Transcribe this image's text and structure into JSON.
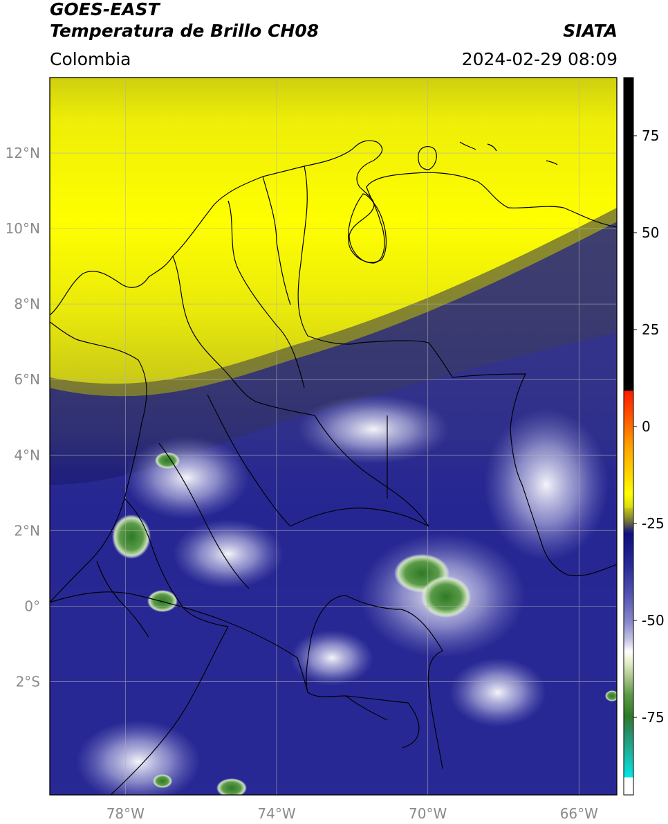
{
  "header": {
    "satellite": "GOES-EAST",
    "product": "Temperatura de Brillo CH08",
    "region": "Colombia",
    "agency": "SIATA",
    "datetime": "2024-02-29 08:09"
  },
  "map": {
    "lat_range": [
      -5.0,
      14.0
    ],
    "lon_range": [
      -80.0,
      -65.0
    ],
    "lat_ticks": [
      "12°N",
      "10°N",
      "8°N",
      "6°N",
      "4°N",
      "2°N",
      "0°",
      "2°S"
    ],
    "lon_ticks": [
      "78°W",
      "74°W",
      "70°W",
      "66°W"
    ],
    "gridlines": true
  },
  "colorbar": {
    "ticks": [
      "75",
      "50",
      "25",
      "0",
      "-25",
      "-50",
      "-75"
    ],
    "range": [
      -95,
      90
    ],
    "colors": {
      "black": "#000000",
      "red": "#ff1a00",
      "orange": "#ff9a00",
      "yellow": "#ffff00",
      "olive": "#6d6d2a",
      "navy": "#10107a",
      "lavender": "#9a9ad0",
      "white": "#ffffff",
      "green": "#3a8a2a",
      "cyan": "#00e0e0"
    }
  }
}
